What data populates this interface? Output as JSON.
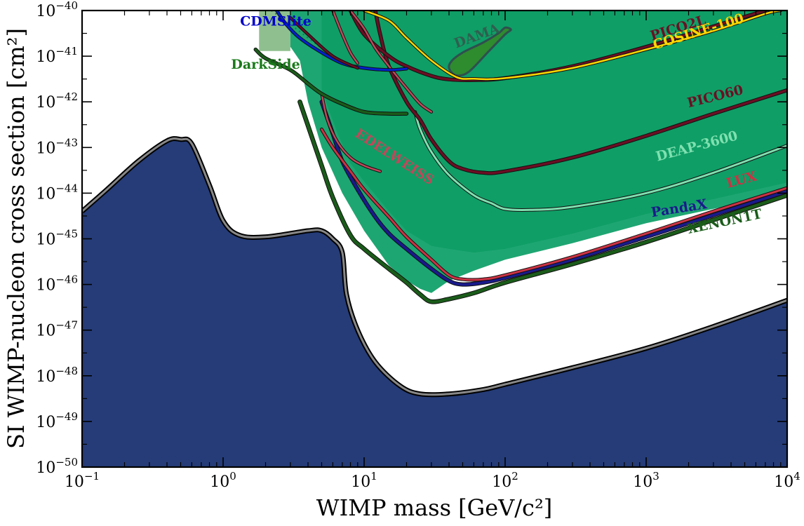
{
  "chart_data": {
    "type": "area",
    "xlabel": "WIMP mass [GeV/c²]",
    "ylabel": "SI WIMP-nucleon cross section [cm²]",
    "xscale": "log",
    "yscale": "log",
    "xlim": [
      0.1,
      10000
    ],
    "ylim": [
      1e-50,
      1e-40
    ],
    "grid": false,
    "x_ticks": [
      {
        "base": "10",
        "exp": "−1",
        "value": 0.1
      },
      {
        "base": "10",
        "exp": "0",
        "value": 1
      },
      {
        "base": "10",
        "exp": "1",
        "value": 10
      },
      {
        "base": "10",
        "exp": "2",
        "value": 100
      },
      {
        "base": "10",
        "exp": "3",
        "value": 1000
      },
      {
        "base": "10",
        "exp": "4",
        "value": 10000
      }
    ],
    "y_ticks": [
      {
        "base": "10",
        "exp": "−50",
        "value": 1e-50
      },
      {
        "base": "10",
        "exp": "−49",
        "value": 1e-49
      },
      {
        "base": "10",
        "exp": "−48",
        "value": 1e-48
      },
      {
        "base": "10",
        "exp": "−47",
        "value": 1e-47
      },
      {
        "base": "10",
        "exp": "−46",
        "value": 1e-46
      },
      {
        "base": "10",
        "exp": "−45",
        "value": 1e-45
      },
      {
        "base": "10",
        "exp": "−44",
        "value": 1e-44
      },
      {
        "base": "10",
        "exp": "−43",
        "value": 1e-43
      },
      {
        "base": "10",
        "exp": "−42",
        "value": 1e-42
      },
      {
        "base": "10",
        "exp": "−41",
        "value": 1e-41
      },
      {
        "base": "10",
        "exp": "−40",
        "value": 1e-40
      }
    ],
    "neutrino_floor": {
      "color": "#253c78",
      "edge_color": "#888888",
      "points": [
        [
          0.1,
          4e-45
        ],
        [
          0.15,
          1.2e-44
        ],
        [
          0.25,
          5e-44
        ],
        [
          0.4,
          1.4e-43
        ],
        [
          0.5,
          1.5e-43
        ],
        [
          0.6,
          1.2e-43
        ],
        [
          0.8,
          1.5e-44
        ],
        [
          1.0,
          2.5e-45
        ],
        [
          1.3,
          1.2e-45
        ],
        [
          2,
          1.1e-45
        ],
        [
          4,
          1.5e-45
        ],
        [
          5,
          1.5e-45
        ],
        [
          6,
          1e-45
        ],
        [
          7,
          5e-46
        ],
        [
          7.5,
          6e-47
        ],
        [
          9,
          1e-47
        ],
        [
          12,
          2e-48
        ],
        [
          18,
          6e-49
        ],
        [
          25,
          4e-49
        ],
        [
          40,
          4e-49
        ],
        [
          70,
          5e-49
        ],
        [
          100,
          6.5e-49
        ],
        [
          300,
          1.5e-48
        ],
        [
          1000,
          4e-48
        ],
        [
          3000,
          1.2e-47
        ],
        [
          10000,
          4.5e-47
        ]
      ]
    },
    "excluded_regions": [
      {
        "name": "DarkSide-light",
        "color": "#8fbf8f",
        "points": [
          [
            1.8,
            1e-40
          ],
          [
            3,
            1e-40
          ],
          [
            3,
            1.3e-41
          ],
          [
            1.8,
            1.3e-41
          ]
        ]
      },
      {
        "name": "XENON1T-region",
        "color": "#1ea672",
        "points": [
          [
            3,
            1e-40
          ],
          [
            10000,
            1e-40
          ],
          [
            10000,
            1e-44
          ],
          [
            1000,
            2.2e-45
          ],
          [
            300,
            8e-46
          ],
          [
            100,
            3.5e-46
          ],
          [
            60,
            2e-46
          ],
          [
            40,
            1.2e-46
          ],
          [
            30,
            6.5e-47
          ],
          [
            25,
            8e-47
          ],
          [
            20,
            1.2e-46
          ],
          [
            15,
            2.6e-46
          ],
          [
            10,
            1.5e-45
          ],
          [
            7,
            1e-44
          ],
          [
            5,
            1e-43
          ],
          [
            4,
            1e-42
          ],
          [
            3.5,
            8e-42
          ],
          [
            3,
            1.6e-41
          ]
        ]
      },
      {
        "name": "LUX-region",
        "color": "#0f9e66",
        "points": [
          [
            5,
            1e-40
          ],
          [
            10000,
            1e-40
          ],
          [
            10000,
            1.7e-44
          ],
          [
            1000,
            3.5e-45
          ],
          [
            300,
            1.3e-45
          ],
          [
            100,
            6e-46
          ],
          [
            60,
            5e-46
          ],
          [
            40,
            6e-46
          ],
          [
            30,
            7e-46
          ],
          [
            20,
            1.5e-45
          ],
          [
            15,
            4e-45
          ],
          [
            10,
            1.8e-44
          ],
          [
            8,
            4.5e-44
          ],
          [
            6.5,
            2e-43
          ],
          [
            5.5,
            8e-43
          ],
          [
            5,
            1.9e-42
          ]
        ]
      }
    ],
    "dama_region": {
      "name": "DAMA",
      "color": "#2e8b2e",
      "edge_color": "#2f4f4f",
      "points": [
        [
          40,
          5.5e-42
        ],
        [
          45,
          3.8e-42
        ],
        [
          55,
          4.5e-42
        ],
        [
          75,
          1.2e-41
        ],
        [
          100,
          3e-41
        ],
        [
          110,
          3.8e-41
        ],
        [
          100,
          4.2e-41
        ],
        [
          90,
          3.2e-41
        ],
        [
          70,
          2e-41
        ],
        [
          50,
          1.2e-41
        ],
        [
          42,
          8e-42
        ]
      ]
    },
    "series": [
      {
        "name": "XENON1T",
        "color": "#1a5c1a",
        "width": 4.5,
        "points": [
          [
            3.5,
            1e-42
          ],
          [
            4,
            3e-43
          ],
          [
            5,
            4e-44
          ],
          [
            6,
            8e-45
          ],
          [
            8,
            1.2e-45
          ],
          [
            10,
            6e-46
          ],
          [
            15,
            2.2e-46
          ],
          [
            20,
            1.1e-46
          ],
          [
            25,
            6e-47
          ],
          [
            30,
            4.2e-47
          ],
          [
            40,
            4.8e-47
          ],
          [
            60,
            6.5e-47
          ],
          [
            100,
            1.1e-46
          ],
          [
            300,
            2.8e-46
          ],
          [
            1000,
            8.5e-46
          ],
          [
            3000,
            2.6e-45
          ],
          [
            10000,
            9e-45
          ]
        ]
      },
      {
        "name": "PandaX",
        "color": "#1a1a8c",
        "width": 4,
        "points": [
          [
            5,
            1e-42
          ],
          [
            6,
            2e-43
          ],
          [
            7,
            5e-44
          ],
          [
            9,
            1.2e-44
          ],
          [
            12,
            3e-45
          ],
          [
            15,
            1.3e-45
          ],
          [
            20,
            6e-46
          ],
          [
            30,
            2.2e-46
          ],
          [
            40,
            1.2e-46
          ],
          [
            50,
            1e-46
          ],
          [
            70,
            1.1e-46
          ],
          [
            100,
            1.4e-46
          ],
          [
            300,
            3.5e-46
          ],
          [
            1000,
            1.1e-45
          ],
          [
            3000,
            3.3e-45
          ],
          [
            10000,
            1.1e-44
          ]
        ]
      },
      {
        "name": "LUX",
        "color": "#cc3344",
        "width": 3,
        "points": [
          [
            5,
            2.5e-43
          ],
          [
            6,
            1e-43
          ],
          [
            8,
            3e-44
          ],
          [
            10,
            1.2e-44
          ],
          [
            15,
            3e-45
          ],
          [
            20,
            1.1e-45
          ],
          [
            30,
            3.5e-46
          ],
          [
            40,
            1.6e-46
          ],
          [
            50,
            1.3e-46
          ],
          [
            70,
            1.3e-46
          ],
          [
            100,
            1.6e-46
          ],
          [
            300,
            4e-46
          ],
          [
            1000,
            1.3e-45
          ],
          [
            3000,
            4e-45
          ],
          [
            10000,
            1.3e-44
          ]
        ]
      },
      {
        "name": "DEAP-3600",
        "color": "#7fe0b0",
        "width": 3,
        "points": [
          [
            23,
            6e-43
          ],
          [
            25,
            2.5e-43
          ],
          [
            30,
            8e-44
          ],
          [
            40,
            2.5e-44
          ],
          [
            60,
            9e-45
          ],
          [
            80,
            6e-45
          ],
          [
            100,
            4.5e-45
          ],
          [
            150,
            4.3e-45
          ],
          [
            300,
            5e-45
          ],
          [
            1000,
            1e-44
          ],
          [
            3000,
            2.8e-44
          ],
          [
            10000,
            1.1e-43
          ]
        ]
      },
      {
        "name": "PICO60",
        "color": "#6b0f24",
        "width": 3.5,
        "points": [
          [
            12,
            1e-40
          ],
          [
            13,
            3e-41
          ],
          [
            15,
            6e-42
          ],
          [
            20,
            1e-42
          ],
          [
            25,
            4e-43
          ],
          [
            30,
            1.5e-43
          ],
          [
            40,
            5e-44
          ],
          [
            50,
            3.4e-44
          ],
          [
            70,
            2.8e-44
          ],
          [
            100,
            3e-44
          ],
          [
            300,
            6e-44
          ],
          [
            1000,
            1.8e-43
          ],
          [
            3000,
            5.5e-43
          ],
          [
            10000,
            1.8e-42
          ]
        ]
      },
      {
        "name": "PICO2L",
        "color": "#6b0f24",
        "width": 3.5,
        "points": [
          [
            8,
            1e-40
          ],
          [
            10,
            3e-41
          ],
          [
            15,
            1e-41
          ],
          [
            20,
            6e-42
          ],
          [
            30,
            3.7e-42
          ],
          [
            40,
            3.1e-42
          ],
          [
            60,
            3e-42
          ],
          [
            100,
            3.3e-42
          ],
          [
            300,
            6e-42
          ],
          [
            1000,
            1.6e-41
          ],
          [
            3000,
            4.5e-41
          ],
          [
            7000,
            1e-40
          ]
        ]
      },
      {
        "name": "COSINE-100",
        "color": "#ffd700",
        "width": 2.5,
        "points": [
          [
            10,
            1e-40
          ],
          [
            15,
            6e-41
          ],
          [
            20,
            2.5e-41
          ],
          [
            30,
            8e-42
          ],
          [
            45,
            3.5e-42
          ],
          [
            60,
            3.2e-42
          ],
          [
            100,
            3.3e-42
          ],
          [
            300,
            5.5e-42
          ],
          [
            1000,
            1.4e-41
          ],
          [
            3000,
            3.6e-41
          ],
          [
            7000,
            8.5e-41
          ],
          [
            9000,
            1e-40
          ]
        ]
      },
      {
        "name": "EDELWEISS",
        "color": "#c0485a",
        "width": 2.5,
        "points": [
          [
            8,
            1e-40
          ],
          [
            10,
            4e-41
          ],
          [
            12,
            1.5e-41
          ],
          [
            15,
            6e-42
          ],
          [
            20,
            2e-42
          ],
          [
            25,
            9e-43
          ],
          [
            30,
            6e-43
          ]
        ]
      },
      {
        "name": "EDELWEISS-2",
        "color": "#c0485a",
        "width": 2.5,
        "points": [
          [
            6,
            1e-40
          ],
          [
            7,
            3e-41
          ],
          [
            8,
            1.2e-41
          ],
          [
            9,
            7e-42
          ]
        ]
      },
      {
        "name": "EDELWEISS-3",
        "color": "#c0485a",
        "width": 2.5,
        "points": [
          [
            5,
            1.5e-42
          ],
          [
            5.5,
            4e-43
          ],
          [
            6.5,
            1.3e-43
          ],
          [
            8,
            6e-44
          ],
          [
            10,
            4e-44
          ],
          [
            13,
            3e-44
          ]
        ]
      },
      {
        "name": "CDMSlite",
        "color": "#0022cc",
        "width": 3,
        "points": [
          [
            2.4,
            1e-40
          ],
          [
            2.8,
            5e-41
          ],
          [
            3.5,
            2.5e-41
          ],
          [
            5,
            1.2e-41
          ],
          [
            7,
            7e-42
          ],
          [
            10,
            5.5e-42
          ],
          [
            15,
            5e-42
          ],
          [
            20,
            5.3e-42
          ]
        ]
      },
      {
        "name": "DarkSide",
        "color": "#1a5c1a",
        "width": 3.5,
        "points": [
          [
            1.7,
            1.4e-41
          ],
          [
            2,
            9e-42
          ],
          [
            3,
            5e-42
          ],
          [
            4,
            2.5e-42
          ],
          [
            5,
            1.5e-42
          ],
          [
            7,
            9e-43
          ],
          [
            10,
            6e-43
          ],
          [
            15,
            5.5e-43
          ],
          [
            20,
            5.5e-43
          ]
        ]
      },
      {
        "name": "PICO-diag",
        "color": "#6b0f24",
        "width": 2.5,
        "points": [
          [
            3,
            7e-41
          ],
          [
            4,
            3e-41
          ],
          [
            6,
            1e-41
          ],
          [
            9,
            5.5e-42
          ]
        ]
      }
    ],
    "labels": [
      {
        "text": "CDMSlite",
        "color": "#0000cc",
        "x": 1.32,
        "y": 4.7e-41,
        "rotate": 0,
        "size": 20
      },
      {
        "text": "DarkSide",
        "color": "#1a7a1a",
        "x": 1.14,
        "y": 5.3e-42,
        "rotate": 0,
        "size": 20
      },
      {
        "text": "DAMA",
        "color": "#2f5f4f",
        "x": 45,
        "y": 1.5e-41,
        "rotate": -20,
        "size": 21
      },
      {
        "text": "PICO2L",
        "color": "#6b0f24",
        "x": 1100,
        "y": 2.2e-41,
        "rotate": -17,
        "size": 20
      },
      {
        "text": "COSINE-100",
        "color": "#ffd700",
        "x": 1150,
        "y": 1.4e-41,
        "rotate": -17,
        "size": 20
      },
      {
        "text": "PICO60",
        "color": "#6b0f24",
        "x": 2000,
        "y": 7.5e-43,
        "rotate": -14,
        "size": 20
      },
      {
        "text": "EDELWEISS",
        "color": "#c0485a",
        "x": 8.5,
        "y": 1.8e-43,
        "rotate": 33,
        "size": 17
      },
      {
        "text": "DEAP-3600",
        "color": "#7fe0b0",
        "x": 1200,
        "y": 5e-44,
        "rotate": -15,
        "size": 19
      },
      {
        "text": "LUX",
        "color": "#cc3344",
        "x": 3800,
        "y": 1.3e-44,
        "rotate": -15,
        "size": 19
      },
      {
        "text": "PandaX",
        "color": "#1a1a8c",
        "x": 1100,
        "y": 3e-45,
        "rotate": -9,
        "size": 19
      },
      {
        "text": "XENON1T",
        "color": "#1a5c1a",
        "x": 2000,
        "y": 1.3e-45,
        "rotate": -12,
        "size": 19
      }
    ]
  }
}
